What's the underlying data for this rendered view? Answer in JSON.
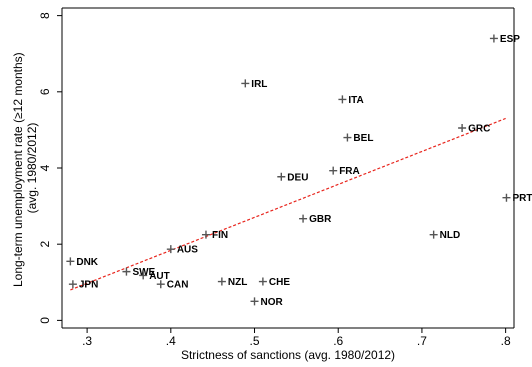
{
  "chart_data": {
    "type": "scatter",
    "title": "",
    "xlabel": "Strictness of sanctions (avg. 1980/2012)",
    "ylabel_line1": "Long-term unemployment rate (≥12 months)",
    "ylabel_line2": "(avg. 1980/2012)",
    "xlim": [
      0.27,
      0.81
    ],
    "ylim": [
      -0.2,
      8.2
    ],
    "xticks": [
      0.3,
      0.4,
      0.5,
      0.6,
      0.7,
      0.8
    ],
    "xtick_labels": [
      ".3",
      ".4",
      ".5",
      ".6",
      ".7",
      ".8"
    ],
    "yticks": [
      0,
      2,
      4,
      6,
      8
    ],
    "ytick_labels": [
      "0",
      "2",
      "4",
      "6",
      "8"
    ],
    "grid": false,
    "legend": "none",
    "marker": "+",
    "points": [
      {
        "label": "ESP",
        "x": 0.786,
        "y": 7.4
      },
      {
        "label": "IRL",
        "x": 0.489,
        "y": 6.22
      },
      {
        "label": "ITA",
        "x": 0.605,
        "y": 5.8
      },
      {
        "label": "GRC",
        "x": 0.748,
        "y": 5.05
      },
      {
        "label": "BEL",
        "x": 0.611,
        "y": 4.8
      },
      {
        "label": "FRA",
        "x": 0.594,
        "y": 3.93
      },
      {
        "label": "DEU",
        "x": 0.532,
        "y": 3.77
      },
      {
        "label": "PRT",
        "x": 0.801,
        "y": 3.22
      },
      {
        "label": "GBR",
        "x": 0.558,
        "y": 2.67
      },
      {
        "label": "FIN",
        "x": 0.442,
        "y": 2.25
      },
      {
        "label": "NLD",
        "x": 0.714,
        "y": 2.25
      },
      {
        "label": "AUS",
        "x": 0.4,
        "y": 1.87
      },
      {
        "label": "DNK",
        "x": 0.28,
        "y": 1.55
      },
      {
        "label": "SWE",
        "x": 0.347,
        "y": 1.28
      },
      {
        "label": "AUT",
        "x": 0.367,
        "y": 1.18
      },
      {
        "label": "JPN",
        "x": 0.283,
        "y": 0.95
      },
      {
        "label": "CAN",
        "x": 0.388,
        "y": 0.95
      },
      {
        "label": "NZL",
        "x": 0.461,
        "y": 1.02
      },
      {
        "label": "CHE",
        "x": 0.51,
        "y": 1.02
      },
      {
        "label": "NOR",
        "x": 0.5,
        "y": 0.5
      }
    ],
    "fit_line": {
      "x": [
        0.28,
        0.8
      ],
      "y": [
        0.8,
        5.3
      ],
      "color": "#e8241c",
      "style": "dashed"
    },
    "marker_color": "#555555"
  }
}
